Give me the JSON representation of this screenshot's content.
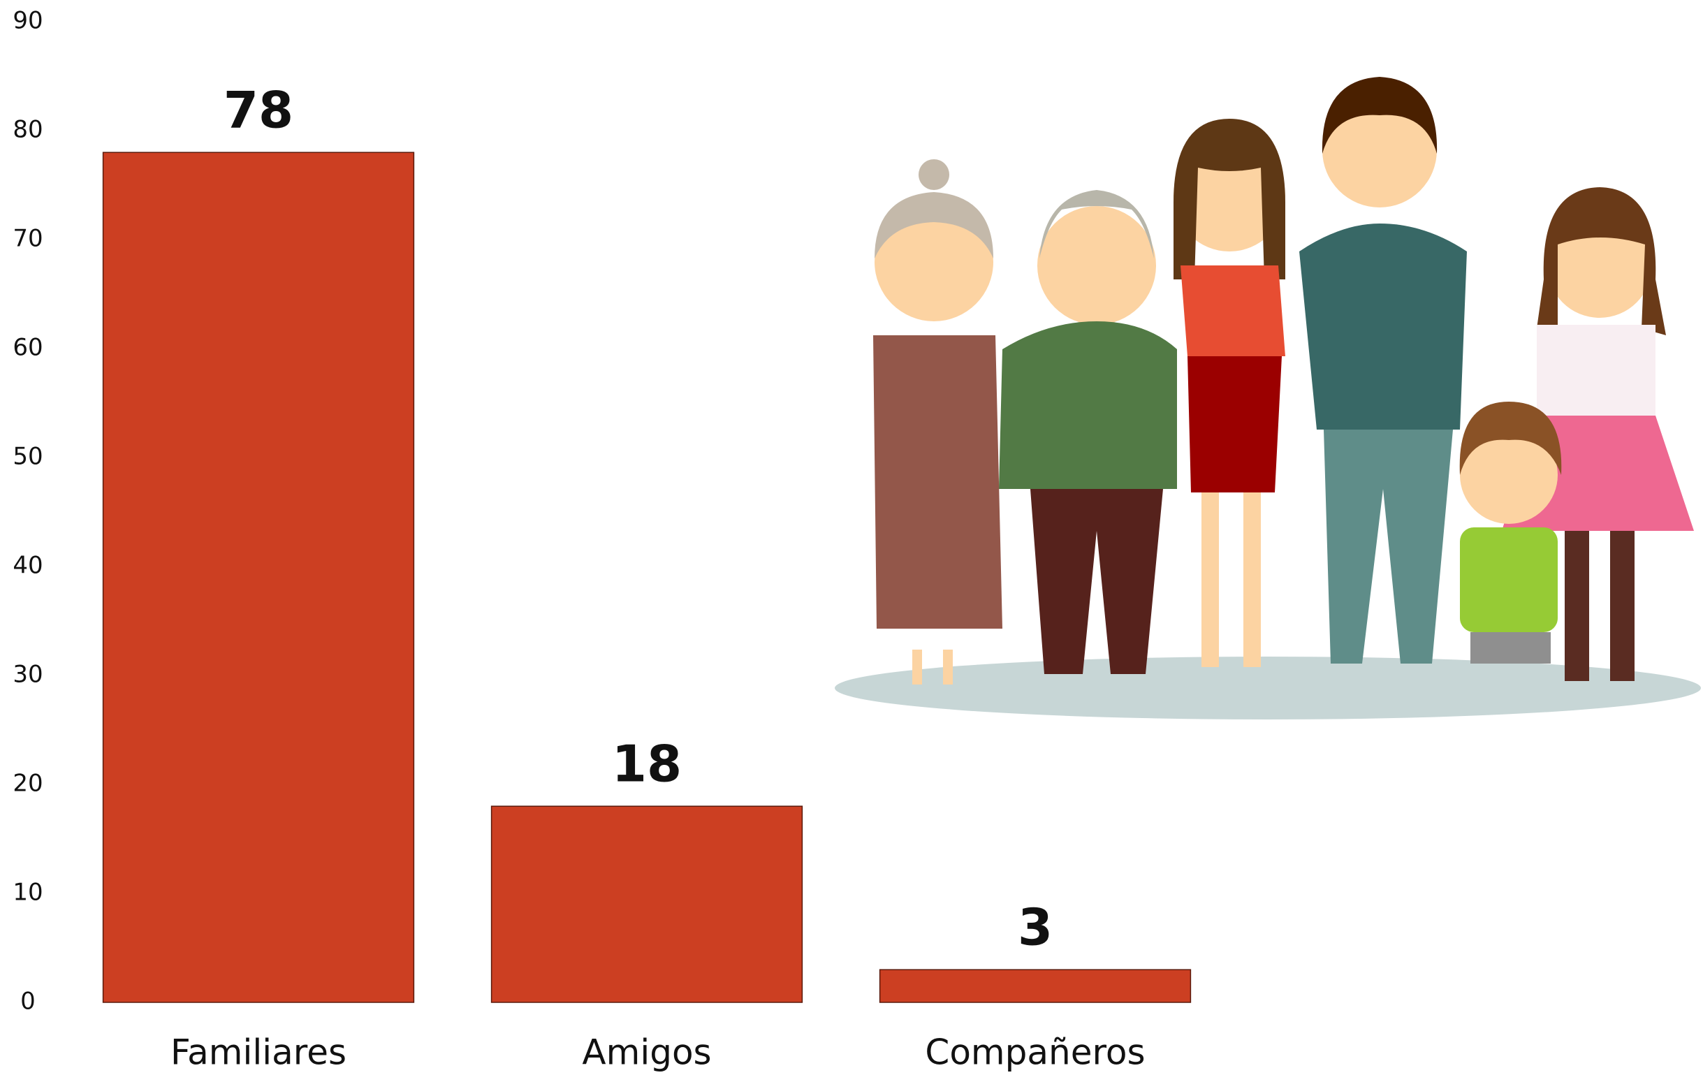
{
  "chart_data": {
    "type": "bar",
    "categories": [
      "Familiares",
      "Amigos",
      "Compañeros"
    ],
    "values": [
      78,
      18,
      3
    ],
    "color": "#cc3f22",
    "ylim": [
      0,
      90
    ],
    "yticks": [
      0,
      10,
      20,
      30,
      40,
      50,
      60,
      70,
      80,
      90
    ],
    "grid": false,
    "data_labels": true
  }
}
